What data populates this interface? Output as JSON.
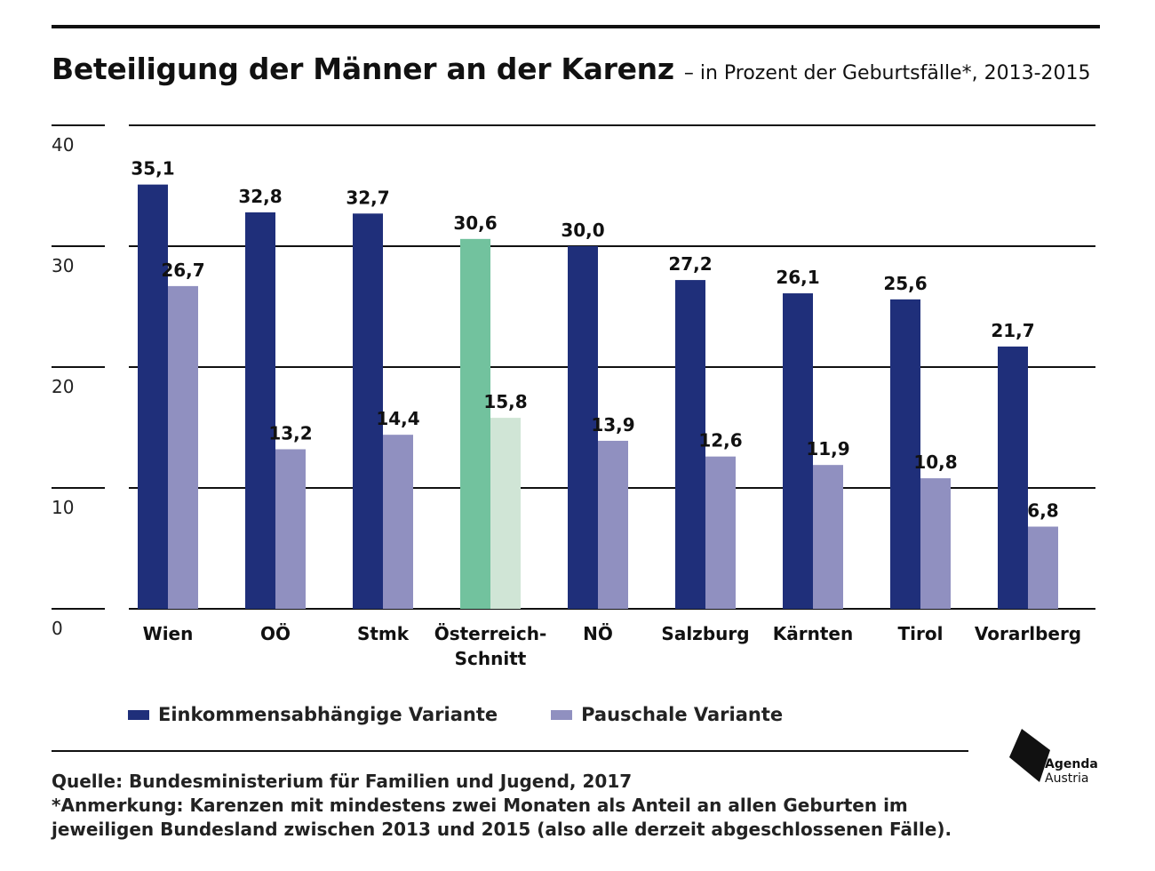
{
  "title": "Beteiligung der Männer an der Karenz",
  "subtitle": "– in Prozent der Geburtsfälle*, 2013-2015",
  "legend": {
    "series1": "Einkommensabhängige Variante",
    "series2": "Pauschale Variante"
  },
  "footer": {
    "source": "Quelle: Bundesministerium für Familien und Jugend, 2017",
    "note_line1": "*Anmerkung: Karenzen mit mindestens zwei Monaten als Anteil an allen Geburten im",
    "note_line2": "jeweiligen Bundesland zwischen 2013 und 2015 (also alle derzeit abgeschlossenen Fälle)."
  },
  "logo": {
    "line1": "Agenda",
    "line2": "Austria"
  },
  "colors": {
    "series1": "#1f2f7a",
    "series2": "#9090c0",
    "highlight1": "#72c29e",
    "highlight2": "#d0e5d6"
  },
  "chart_data": {
    "type": "bar",
    "categories": [
      "Wien",
      "OÖ",
      "Stmk",
      "Österreich-Schnitt",
      "NÖ",
      "Salzburg",
      "Kärnten",
      "Tirol",
      "Vorarlberg"
    ],
    "category_lines": [
      [
        "Wien"
      ],
      [
        "OÖ"
      ],
      [
        "Stmk"
      ],
      [
        "Österreich-",
        "Schnitt"
      ],
      [
        "NÖ"
      ],
      [
        "Salzburg"
      ],
      [
        "Kärnten"
      ],
      [
        "Tirol"
      ],
      [
        "Vorarlberg"
      ]
    ],
    "series": [
      {
        "name": "Einkommensabhängige Variante",
        "values": [
          35.1,
          32.8,
          32.7,
          30.6,
          30.0,
          27.2,
          26.1,
          25.6,
          21.7
        ],
        "labels": [
          "35,1",
          "32,8",
          "32,7",
          "30,6",
          "30,0",
          "27,2",
          "26,1",
          "25,6",
          "21,7"
        ]
      },
      {
        "name": "Pauschale Variante",
        "values": [
          26.7,
          13.2,
          14.4,
          15.8,
          13.9,
          12.6,
          11.9,
          10.8,
          6.8
        ],
        "labels": [
          "26,7",
          "13,2",
          "14,4",
          "15,8",
          "13,9",
          "12,6",
          "11,9",
          "10,8",
          "6,8"
        ]
      }
    ],
    "highlight_category": "Österreich-Schnitt",
    "yticks": [
      0,
      10,
      20,
      30,
      40
    ],
    "ylim": [
      0,
      40
    ],
    "grid": true,
    "legend_position": "bottom-left"
  }
}
